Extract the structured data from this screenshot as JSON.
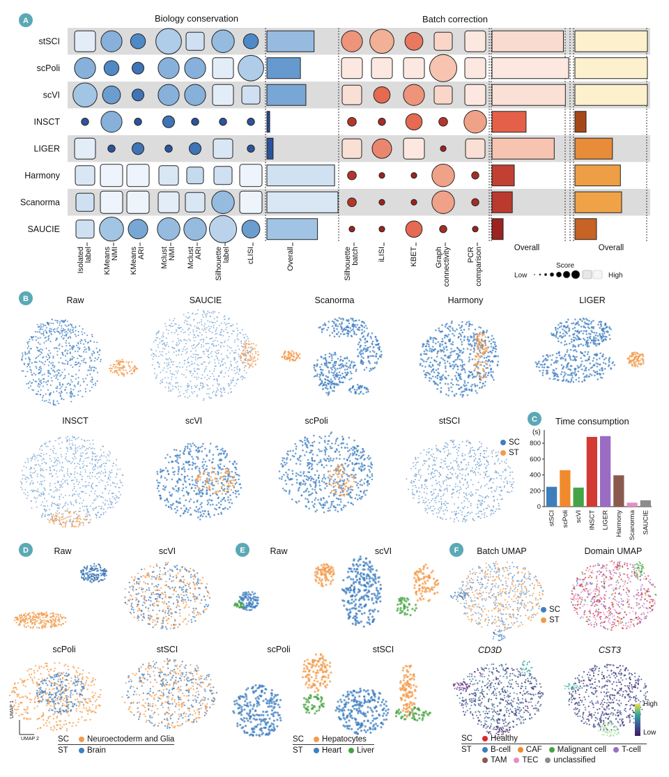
{
  "panels": [
    "A",
    "B",
    "C",
    "D",
    "E",
    "F"
  ],
  "panel_a": {
    "title_bio": "Biology conservation",
    "title_batch": "Batch correction",
    "methods": [
      "stSCI",
      "scPoli",
      "scVI",
      "INSCT",
      "LIGER",
      "Harmony",
      "Scanorma",
      "SAUCIE"
    ],
    "bio_metrics": [
      "Isolated label",
      "KMeans NMI",
      "KMeans ARI",
      "Mclust NMI",
      "Mclust ARI",
      "Silhouette label",
      "cLISI"
    ],
    "bio_metric_lines": [
      [
        "Isolated",
        "label"
      ],
      [
        "KMeans",
        "NMI"
      ],
      [
        "KMeans",
        "ARI"
      ],
      [
        "Mclust",
        "NMI"
      ],
      [
        "Mclust",
        "ARI"
      ],
      [
        "Silhouette",
        "label"
      ],
      [
        "cLISI"
      ]
    ],
    "batch_metrics": [
      "Silhouette batch",
      "iLISI",
      "KBET",
      "Graph connectivity",
      "PCR comparison"
    ],
    "batch_metric_lines": [
      [
        "Silhouette",
        "batch"
      ],
      [
        "iLISI"
      ],
      [
        "KBET"
      ],
      [
        "Graph",
        "connectivity"
      ],
      [
        "PCR",
        "comparison"
      ]
    ],
    "overall_label": "Overall",
    "bio_scores": [
      [
        0.95,
        0.55,
        0.35,
        0.7,
        0.85,
        0.6,
        0.35
      ],
      [
        0.55,
        0.35,
        0.25,
        0.55,
        0.55,
        0.95,
        0.7
      ],
      [
        0.65,
        0.45,
        0.25,
        0.55,
        0.55,
        0.95,
        0.85
      ],
      [
        0.1,
        0.55,
        0.1,
        0.25,
        0.1,
        0.1,
        0.1
      ],
      [
        0.95,
        0.1,
        0.25,
        0.1,
        0.25,
        0.9,
        0.1
      ],
      [
        0.9,
        1.0,
        1.0,
        0.9,
        0.8,
        0.85,
        1.0
      ],
      [
        0.85,
        1.0,
        1.0,
        0.95,
        0.9,
        0.6,
        1.0
      ],
      [
        0.85,
        0.65,
        0.5,
        0.6,
        0.6,
        0.75,
        0.45
      ]
    ],
    "bio_overall": [
      0.65,
      0.45,
      0.53,
      0.0,
      0.05,
      0.95,
      1.0,
      0.7
    ],
    "batch_scores": [
      [
        0.55,
        0.65,
        0.45,
        0.85,
        0.95
      ],
      [
        0.95,
        0.95,
        0.95,
        0.75,
        0.95
      ],
      [
        0.9,
        0.4,
        0.55,
        0.85,
        0.95
      ],
      [
        0.15,
        0.1,
        0.4,
        0.15,
        0.6
      ],
      [
        0.9,
        0.5,
        0.95,
        0.05,
        0.9
      ],
      [
        0.15,
        0.05,
        0.05,
        0.6,
        0.1
      ],
      [
        0.15,
        0.05,
        0.05,
        0.6,
        0.1
      ],
      [
        0.05,
        0.05,
        0.4,
        0.1,
        0.05
      ]
    ],
    "batch_overall": [
      0.92,
      1.0,
      0.95,
      0.35,
      0.78,
      0.17,
      0.14,
      0.0
    ],
    "total_overall": [
      1.0,
      1.0,
      1.0,
      0.0,
      0.43,
      0.56,
      0.58,
      0.17
    ],
    "score_legend": {
      "title": "Score",
      "low": "Low",
      "high": "High"
    }
  },
  "panel_b": {
    "titles": [
      "Raw",
      "SAUCIE",
      "Scanorma",
      "Harmony",
      "LIGER",
      "INSCT",
      "scVI",
      "scPoli",
      "stSCI"
    ],
    "legend": [
      {
        "label": "SC",
        "color": "#3f7fc1"
      },
      {
        "label": "ST",
        "color": "#f39b4b"
      }
    ]
  },
  "chart_data": {
    "type": "bar",
    "title": "Time consumption",
    "ylabel": "(s)",
    "categories": [
      "stSCI",
      "scPoli",
      "scVI",
      "INSCT",
      "LIGER",
      "Harmony",
      "Scanorma",
      "SAUCIE"
    ],
    "values": [
      250,
      460,
      240,
      880,
      890,
      395,
      50,
      80
    ],
    "colors": [
      "#3d7ebd",
      "#f08a2c",
      "#45a447",
      "#d23a34",
      "#9a6cc4",
      "#8b5a4e",
      "#e58ec6",
      "#8c8c8c"
    ],
    "yticks": [
      0,
      200,
      400,
      600,
      800
    ],
    "ylim": [
      0,
      950
    ],
    "grid": false,
    "legend": "none"
  },
  "panel_d": {
    "titles": [
      "Raw",
      "scVI",
      "scPoli",
      "stSCI"
    ],
    "axis": {
      "y": "UMAP 1",
      "x": "UMAP 2"
    },
    "legend": [
      {
        "tag": "SC",
        "items": [
          {
            "label": "Neuroectoderm and Glia",
            "color": "#f39b4b"
          }
        ]
      },
      {
        "tag": "ST",
        "items": [
          {
            "label": "Brain",
            "color": "#3f7fc1"
          }
        ]
      }
    ]
  },
  "panel_e": {
    "titles": [
      "Raw",
      "scVI",
      "scPoli",
      "stSCI"
    ],
    "legend": [
      {
        "tag": "SC",
        "items": [
          {
            "label": "Hepatocytes",
            "color": "#f39b4b"
          }
        ]
      },
      {
        "tag": "ST",
        "items": [
          {
            "label": "Heart",
            "color": "#3f7fc1"
          },
          {
            "label": "Liver",
            "color": "#44a33f"
          }
        ]
      }
    ]
  },
  "panel_f": {
    "titles": [
      "Batch UMAP",
      "Domain UMAP",
      "CD3D",
      "CST3"
    ],
    "batch_legend": [
      {
        "label": "SC",
        "color": "#3f7fc1"
      },
      {
        "label": "ST",
        "color": "#f39b4b"
      }
    ],
    "colorbar": {
      "high": "High",
      "low": "Low"
    },
    "legend": [
      {
        "tag": "SC",
        "items": [
          {
            "label": "Healthy",
            "color": "#d7282f"
          }
        ]
      },
      {
        "tag": "ST",
        "items": [
          {
            "label": "B-cell",
            "color": "#3d7ebd"
          },
          {
            "label": "CAF",
            "color": "#f08a2c"
          },
          {
            "label": "Malignant cell",
            "color": "#45a447"
          },
          {
            "label": "T-cell",
            "color": "#9a6cc4"
          },
          {
            "label": "TAM",
            "color": "#8b5a4e"
          },
          {
            "label": "TEC",
            "color": "#e58ec6"
          },
          {
            "label": "unclassified",
            "color": "#8c8c8c"
          }
        ]
      }
    ]
  }
}
